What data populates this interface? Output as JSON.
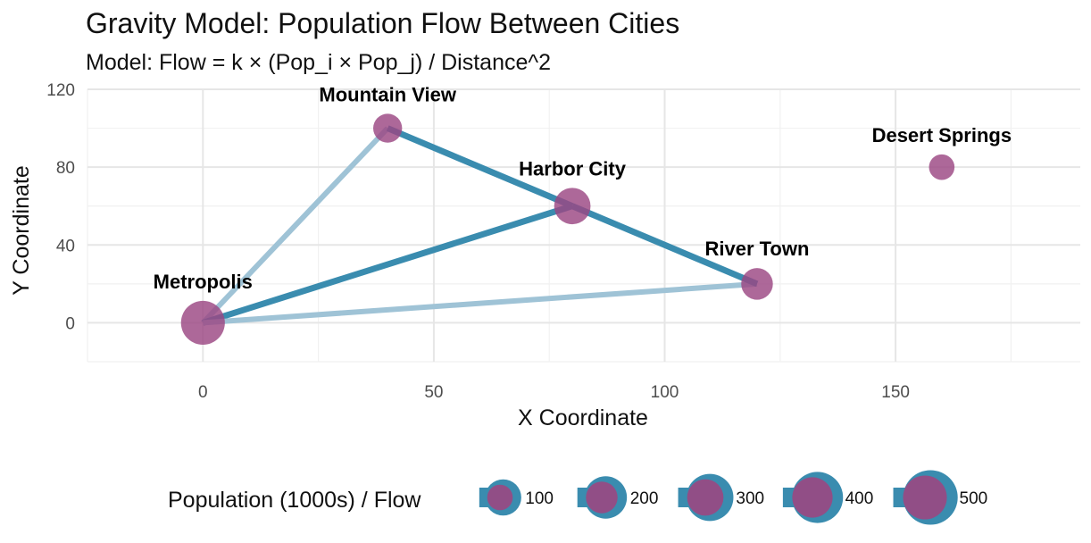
{
  "chart_data": {
    "type": "scatter",
    "title": "Gravity Model: Population Flow Between Cities",
    "subtitle": "Model: Flow = k × (Pop_i × Pop_j) / Distance^2",
    "xlabel": "X Coordinate",
    "ylabel": "Y Coordinate",
    "xlim": [
      -25,
      190
    ],
    "ylim": [
      -20,
      120
    ],
    "x_ticks": [
      0,
      50,
      100,
      150
    ],
    "y_ticks": [
      0,
      40,
      80,
      120
    ],
    "grid": true,
    "legend_position": "bottom",
    "legend_title": "Population (1000s) / Flow",
    "legend_values": [
      100,
      200,
      300,
      400,
      500
    ],
    "colors": {
      "point": "#9b4782",
      "flow_strong": "#3a8caf",
      "flow_weak": "#9fc3d6"
    },
    "cities": [
      {
        "name": "Metropolis",
        "x": 0,
        "y": 0,
        "population": 500
      },
      {
        "name": "Mountain View",
        "x": 40,
        "y": 100,
        "population": 150
      },
      {
        "name": "Harbor City",
        "x": 80,
        "y": 60,
        "population": 300
      },
      {
        "name": "River Town",
        "x": 120,
        "y": 20,
        "population": 200
      },
      {
        "name": "Desert Springs",
        "x": 160,
        "y": 80,
        "population": 100
      }
    ],
    "flows": [
      {
        "from": "Metropolis",
        "to": "Mountain View",
        "strength": "weak"
      },
      {
        "from": "Metropolis",
        "to": "Harbor City",
        "strength": "strong"
      },
      {
        "from": "Metropolis",
        "to": "River Town",
        "strength": "weak"
      },
      {
        "from": "Mountain View",
        "to": "Harbor City",
        "strength": "strong"
      },
      {
        "from": "Harbor City",
        "to": "River Town",
        "strength": "strong"
      }
    ]
  }
}
